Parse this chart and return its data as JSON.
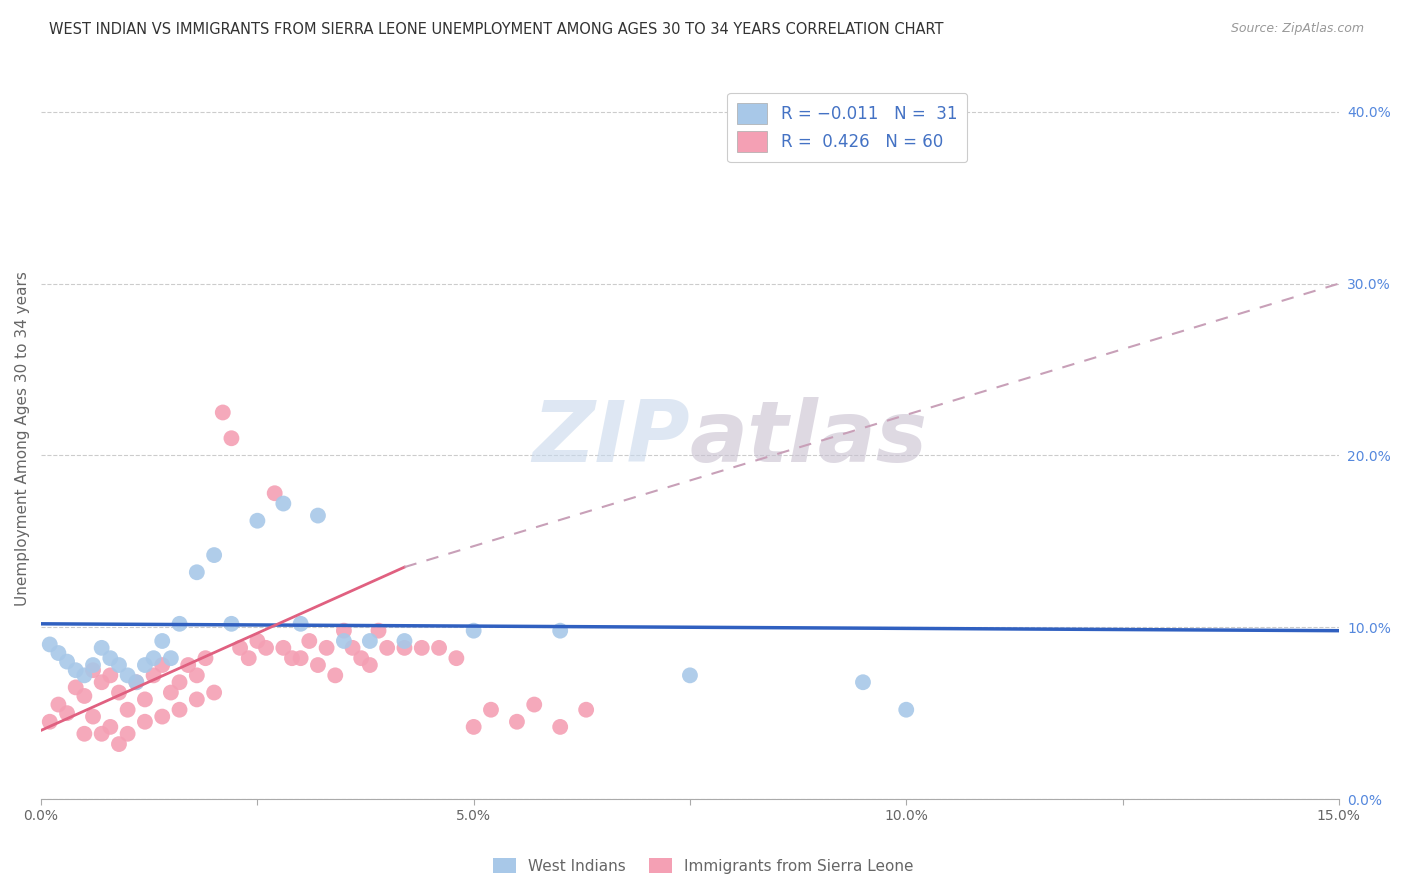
{
  "title": "WEST INDIAN VS IMMIGRANTS FROM SIERRA LEONE UNEMPLOYMENT AMONG AGES 30 TO 34 YEARS CORRELATION CHART",
  "source": "Source: ZipAtlas.com",
  "ylabel": "Unemployment Among Ages 30 to 34 years",
  "ylabel_right_ticks": [
    "0.0%",
    "10.0%",
    "20.0%",
    "30.0%",
    "40.0%"
  ],
  "ylabel_right_vals": [
    0.0,
    0.1,
    0.2,
    0.3,
    0.4
  ],
  "west_indian_color": "#a8c8e8",
  "sierra_leone_color": "#f4a0b4",
  "trend_west_indian_color": "#3060c0",
  "trend_sierra_leone_color": "#e06080",
  "trend_sierra_leone_dashed_color": "#c8a0b8",
  "watermark_zip": "ZIP",
  "watermark_atlas": "atlas",
  "background_color": "#ffffff",
  "xlim": [
    0.0,
    0.15
  ],
  "ylim": [
    0.0,
    0.42
  ],
  "west_indian_x": [
    0.001,
    0.002,
    0.003,
    0.004,
    0.005,
    0.006,
    0.007,
    0.008,
    0.009,
    0.01,
    0.011,
    0.012,
    0.013,
    0.014,
    0.015,
    0.016,
    0.018,
    0.02,
    0.022,
    0.025,
    0.028,
    0.03,
    0.032,
    0.035,
    0.038,
    0.042,
    0.05,
    0.06,
    0.075,
    0.095,
    0.1
  ],
  "west_indian_y": [
    0.09,
    0.085,
    0.08,
    0.075,
    0.072,
    0.078,
    0.088,
    0.082,
    0.078,
    0.072,
    0.068,
    0.078,
    0.082,
    0.092,
    0.082,
    0.102,
    0.132,
    0.142,
    0.102,
    0.162,
    0.172,
    0.102,
    0.165,
    0.092,
    0.092,
    0.092,
    0.098,
    0.098,
    0.072,
    0.068,
    0.052
  ],
  "sierra_leone_x": [
    0.001,
    0.002,
    0.003,
    0.004,
    0.005,
    0.006,
    0.007,
    0.008,
    0.009,
    0.01,
    0.011,
    0.012,
    0.013,
    0.014,
    0.015,
    0.016,
    0.017,
    0.018,
    0.019,
    0.02,
    0.021,
    0.022,
    0.023,
    0.024,
    0.025,
    0.026,
    0.027,
    0.028,
    0.029,
    0.03,
    0.031,
    0.032,
    0.033,
    0.034,
    0.035,
    0.036,
    0.037,
    0.038,
    0.039,
    0.04,
    0.042,
    0.044,
    0.046,
    0.048,
    0.05,
    0.052,
    0.055,
    0.057,
    0.06,
    0.063,
    0.005,
    0.006,
    0.007,
    0.008,
    0.009,
    0.01,
    0.012,
    0.014,
    0.016,
    0.018
  ],
  "sierra_leone_y": [
    0.045,
    0.055,
    0.05,
    0.065,
    0.06,
    0.075,
    0.068,
    0.072,
    0.062,
    0.052,
    0.068,
    0.058,
    0.072,
    0.078,
    0.062,
    0.068,
    0.078,
    0.072,
    0.082,
    0.062,
    0.225,
    0.21,
    0.088,
    0.082,
    0.092,
    0.088,
    0.178,
    0.088,
    0.082,
    0.082,
    0.092,
    0.078,
    0.088,
    0.072,
    0.098,
    0.088,
    0.082,
    0.078,
    0.098,
    0.088,
    0.088,
    0.088,
    0.088,
    0.082,
    0.042,
    0.052,
    0.045,
    0.055,
    0.042,
    0.052,
    0.038,
    0.048,
    0.038,
    0.042,
    0.032,
    0.038,
    0.045,
    0.048,
    0.052,
    0.058
  ],
  "trend_wi_x0": 0.0,
  "trend_wi_x1": 0.15,
  "trend_wi_y0": 0.102,
  "trend_wi_y1": 0.098,
  "trend_sl_solid_x0": 0.0,
  "trend_sl_solid_x1": 0.042,
  "trend_sl_solid_y0": 0.04,
  "trend_sl_solid_y1": 0.135,
  "trend_sl_dash_x0": 0.042,
  "trend_sl_dash_x1": 0.15,
  "trend_sl_dash_y0": 0.135,
  "trend_sl_dash_y1": 0.3
}
